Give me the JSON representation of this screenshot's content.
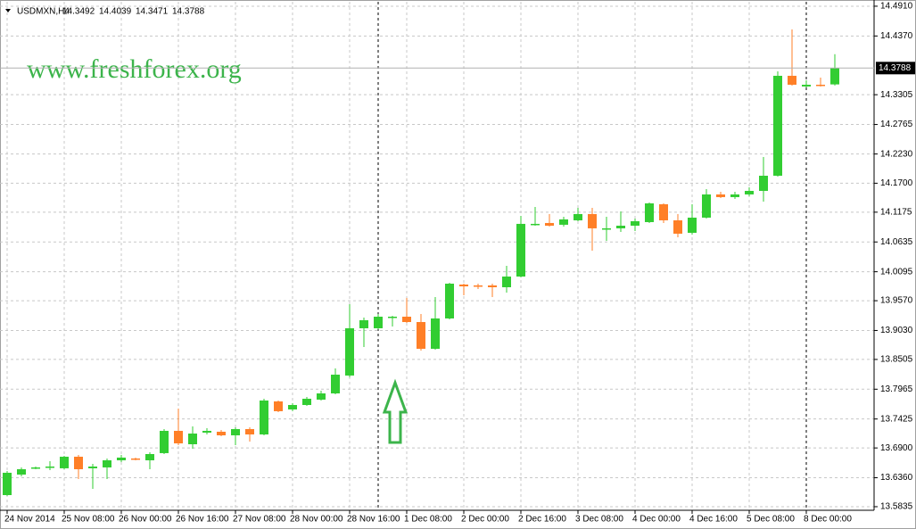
{
  "chart_data": {
    "type": "candlestick",
    "title": "USDMXN,H4",
    "watermark": "www.freshforex.org",
    "up_color": "#32cd32",
    "down_color": "#ff7f27",
    "grid": true,
    "ylim": [
      13.577,
      14.499
    ],
    "yticks": [
      {
        "value": 14.491,
        "label": "14.4910"
      },
      {
        "value": 14.437,
        "label": "14.4370"
      },
      {
        "value": 14.3305,
        "label": "14.3305"
      },
      {
        "value": 14.2765,
        "label": "14.2765"
      },
      {
        "value": 14.223,
        "label": "14.2230"
      },
      {
        "value": 14.17,
        "label": "14.1700"
      },
      {
        "value": 14.1175,
        "label": "14.1175"
      },
      {
        "value": 14.0635,
        "label": "14.0635"
      },
      {
        "value": 14.0095,
        "label": "14.0095"
      },
      {
        "value": 13.957,
        "label": "13.9570"
      },
      {
        "value": 13.903,
        "label": "13.9030"
      },
      {
        "value": 13.8505,
        "label": "13.8505"
      },
      {
        "value": 13.7965,
        "label": "13.7965"
      },
      {
        "value": 13.7425,
        "label": "13.7425"
      },
      {
        "value": 13.69,
        "label": "13.6900"
      },
      {
        "value": 13.636,
        "label": "13.6360"
      },
      {
        "value": 13.5835,
        "label": "13.5835"
      }
    ],
    "categories": [
      "24 Nov 2014",
      null,
      null,
      null,
      "25 Nov 08:00",
      null,
      null,
      null,
      "26 Nov 00:00",
      null,
      null,
      null,
      "26 Nov 16:00",
      null,
      null,
      null,
      "27 Nov 08:00",
      null,
      null,
      null,
      "28 Nov 00:00",
      null,
      null,
      null,
      "28 Nov 16:00",
      null,
      null,
      null,
      "1 Dec 08:00",
      null,
      null,
      null,
      "2 Dec 00:00",
      null,
      null,
      null,
      "2 Dec 16:00",
      null,
      null,
      null,
      "3 Dec 08:00",
      null,
      null,
      null,
      "4 Dec 00:00",
      null,
      null,
      null,
      "4 Dec 16:00",
      null,
      null,
      null,
      "5 Dec 08:00",
      null,
      null,
      null,
      "8 Dec 00:00",
      null,
      null
    ],
    "open": [
      13.6045,
      13.6417,
      13.6531,
      13.6547,
      13.6531,
      13.6741,
      13.6531,
      13.6547,
      13.6676,
      13.6709,
      13.6676,
      13.6806,
      13.721,
      13.6967,
      13.7178,
      13.7194,
      13.7129,
      13.7242,
      13.7145,
      13.7744,
      13.7598,
      13.7679,
      13.7776,
      13.7889,
      13.8213,
      13.907,
      13.907,
      13.9264,
      13.928,
      13.9183,
      13.8698,
      13.9248,
      13.9863,
      13.9847,
      13.9847,
      13.9814,
      14.0008,
      14.0947,
      14.0979,
      14.0947,
      14.1027,
      14.1141,
      14.0866,
      14.0882,
      14.093,
      14.0995,
      14.1319,
      14.1027,
      14.0801,
      14.1076,
      14.1497,
      14.1448,
      14.1497,
      14.1561,
      14.1836,
      14.3648,
      14.3454,
      14.3486,
      14.3492
    ],
    "high": [
      13.6482,
      13.6547,
      13.6563,
      13.666,
      13.6757,
      13.6773,
      13.6611,
      13.6709,
      13.6773,
      13.6725,
      13.6822,
      13.7242,
      13.7614,
      13.7291,
      13.7258,
      13.7226,
      13.7275,
      13.7275,
      13.7792,
      13.776,
      13.7711,
      13.7825,
      13.7938,
      13.8342,
      13.9507,
      13.9264,
      13.9329,
      13.9297,
      13.962,
      13.9329,
      13.9636,
      13.9895,
      13.9879,
      13.9879,
      13.9879,
      14.0203,
      14.1108,
      14.127,
      14.1141,
      14.1092,
      14.1254,
      14.1254,
      14.1092,
      14.1189,
      14.106,
      14.1351,
      14.1335,
      14.1141,
      14.1319,
      14.1594,
      14.1545,
      14.1545,
      14.1626,
      14.2176,
      14.3729,
      14.4489,
      14.3567,
      14.3616,
      14.4039
    ],
    "low": [
      13.6029,
      13.6385,
      13.6514,
      13.6498,
      13.6514,
      13.6336,
      13.6159,
      13.6336,
      13.6644,
      13.6676,
      13.6514,
      13.6789,
      13.6951,
      13.6886,
      13.7145,
      13.7113,
      13.6951,
      13.7016,
      13.7129,
      13.755,
      13.7566,
      13.7663,
      13.776,
      13.7873,
      13.8181,
      13.8731,
      13.9054,
      13.9103,
      13.9167,
      13.8666,
      13.8682,
      13.9232,
      13.9669,
      13.9782,
      13.9636,
      13.9717,
      13.9992,
      14.093,
      14.0914,
      14.0914,
      14.1011,
      14.0478,
      14.0655,
      14.0817,
      14.0833,
      14.0979,
      14.0979,
      14.072,
      14.0769,
      14.106,
      14.1432,
      14.1416,
      14.1464,
      14.1367,
      14.182,
      14.347,
      14.3438,
      14.3454,
      14.3471
    ],
    "close": [
      13.645,
      13.6514,
      13.6547,
      13.6563,
      13.6741,
      13.6514,
      13.6563,
      13.6676,
      13.6725,
      13.6692,
      13.6789,
      13.721,
      13.6983,
      13.7161,
      13.721,
      13.7129,
      13.7242,
      13.7145,
      13.776,
      13.7566,
      13.7679,
      13.7792,
      13.7889,
      13.8229,
      13.907,
      13.9216,
      13.928,
      13.928,
      13.9183,
      13.8698,
      13.9248,
      13.9879,
      13.983,
      13.983,
      13.9814,
      14.0008,
      14.0963,
      14.0963,
      14.093,
      14.1044,
      14.1141,
      14.0882,
      14.0882,
      14.093,
      14.1011,
      14.1335,
      14.1027,
      14.0785,
      14.1076,
      14.1497,
      14.1448,
      14.1497,
      14.1561,
      14.1836,
      14.3648,
      14.3486,
      14.3486,
      14.347,
      14.3788
    ]
  }
}
